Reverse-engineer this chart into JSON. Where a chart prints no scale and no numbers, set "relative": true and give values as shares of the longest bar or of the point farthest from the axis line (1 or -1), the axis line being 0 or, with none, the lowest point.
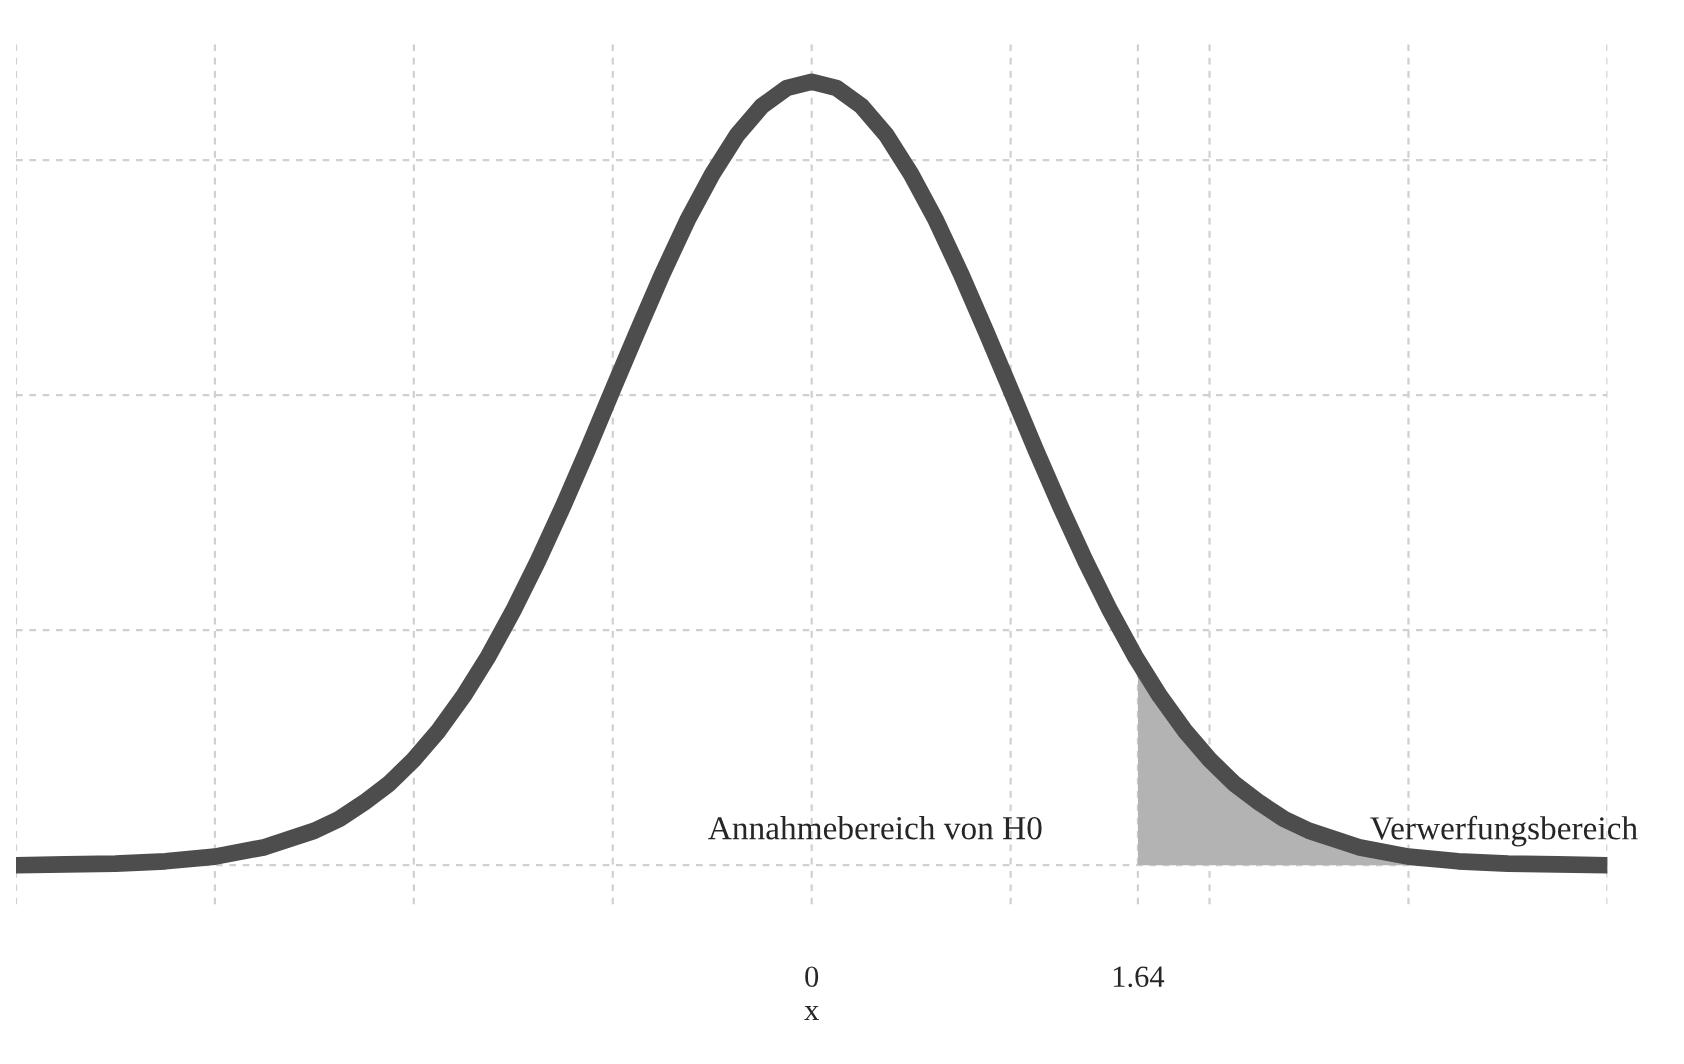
{
  "chart_data": {
    "type": "line",
    "relative": true,
    "xlabel": "x",
    "xlim": [
      -4,
      4
    ],
    "xticks": [
      {
        "value": -4,
        "label": null
      },
      {
        "value": -3,
        "label": null
      },
      {
        "value": -2,
        "label": null
      },
      {
        "value": -1,
        "label": null
      },
      0,
      {
        "value": 1,
        "label": null
      },
      1.64,
      {
        "value": 2,
        "label": null
      },
      {
        "value": 3,
        "label": null
      },
      {
        "value": 4,
        "label": null
      }
    ],
    "grid": true,
    "series": [
      {
        "color": "#4d4d4d",
        "x": [
          -4,
          -3.75,
          -3.5,
          -3.25,
          -3,
          -2.75,
          -2.5,
          -2.375,
          -2.25,
          -2.125,
          -2,
          -1.875,
          -1.75,
          -1.625,
          -1.5,
          -1.375,
          -1.25,
          -1.125,
          -1,
          -0.875,
          -0.75,
          -0.625,
          -0.5,
          -0.375,
          -0.25,
          -0.125,
          0,
          0.125,
          0.25,
          0.375,
          0.5,
          0.625,
          0.75,
          0.875,
          1,
          1.125,
          1.25,
          1.375,
          1.5,
          1.625,
          1.75,
          1.875,
          2,
          2.125,
          2.25,
          2.375,
          2.5,
          2.75,
          3,
          3.25,
          3.5,
          3.75,
          4
        ],
        "values": [
          0,
          0.001,
          0.002,
          0.005,
          0.011,
          0.023,
          0.044,
          0.059,
          0.08,
          0.104,
          0.135,
          0.172,
          0.216,
          0.267,
          0.325,
          0.389,
          0.458,
          0.531,
          0.607,
          0.682,
          0.755,
          0.823,
          0.882,
          0.932,
          0.969,
          0.992,
          1,
          0.992,
          0.969,
          0.932,
          0.882,
          0.823,
          0.755,
          0.682,
          0.607,
          0.531,
          0.458,
          0.389,
          0.325,
          0.267,
          0.216,
          0.172,
          0.135,
          0.104,
          0.08,
          0.059,
          0.044,
          0.023,
          0.011,
          0.005,
          0.002,
          0.001,
          0
        ]
      },
      {
        "type": "area",
        "color": "#b3b3b3",
        "x": [
          1.64,
          1.75,
          1.875,
          2,
          2.125,
          2.25,
          2.375,
          2.5,
          2.75,
          3,
          3.25,
          3.5,
          3.75,
          4
        ],
        "values": [
          0.26,
          0.216,
          0.172,
          0.135,
          0.104,
          0.08,
          0.059,
          0.044,
          0.023,
          0.011,
          0.005,
          0.002,
          0.001,
          0
        ]
      }
    ],
    "annotations": [
      "Annahmebereich von H0",
      "Verwerfungsbereich"
    ]
  }
}
